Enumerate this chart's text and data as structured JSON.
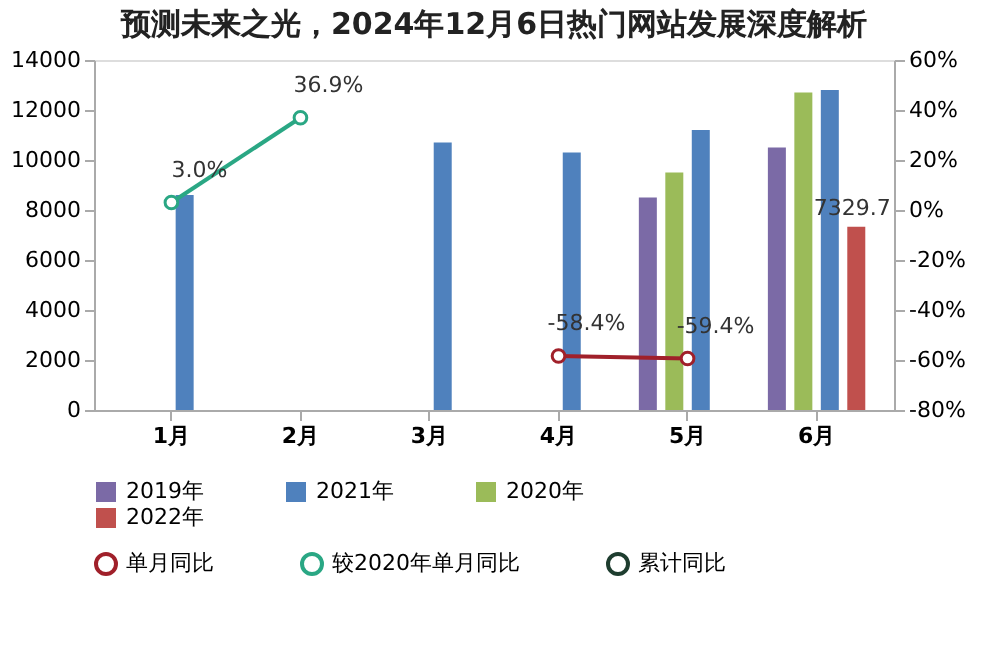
{
  "chart_data": {
    "type": "bar",
    "title": "预测未来之光，2024年12月6日热门网站发展深度解析",
    "categories": [
      "1月",
      "2月",
      "3月",
      "4月",
      "5月",
      "6月"
    ],
    "series": [
      {
        "name": "2019年",
        "color": "#7b6aa6",
        "values": [
          null,
          null,
          null,
          null,
          8500,
          10500
        ]
      },
      {
        "name": "2020年",
        "color": "#9bbb59",
        "values": [
          null,
          null,
          null,
          null,
          9500,
          12700
        ]
      },
      {
        "name": "2021年",
        "color": "#4f81bd",
        "values": [
          8600,
          null,
          10700,
          10300,
          11200,
          12800
        ]
      },
      {
        "name": "2022年",
        "color": "#c0504d",
        "values": [
          null,
          null,
          null,
          null,
          null,
          7329.7
        ],
        "value_labels": [
          null,
          null,
          null,
          null,
          null,
          "7329.7"
        ]
      },
      {
        "name": "单月同比",
        "type": "line",
        "axis": "y2",
        "color": "#a0202a",
        "values": [
          null,
          null,
          null,
          -58.4,
          -59.4,
          null
        ],
        "value_labels": [
          null,
          null,
          null,
          "-58.4%",
          "-59.4%",
          null
        ]
      },
      {
        "name": "较2020年单月同比",
        "type": "line",
        "axis": "y2",
        "color": "#2aa784",
        "values": [
          3.0,
          36.9,
          null,
          null,
          null,
          null
        ],
        "value_labels": [
          "3.0%",
          "36.9%",
          null,
          null,
          null,
          null
        ]
      },
      {
        "name": "累计同比",
        "type": "line",
        "axis": "y2",
        "color": "#1e3d2f",
        "values": [
          null,
          null,
          null,
          null,
          null,
          null
        ]
      }
    ],
    "ylim": [
      0,
      14000
    ],
    "yticks": [
      0,
      2000,
      4000,
      6000,
      8000,
      10000,
      12000,
      14000
    ],
    "y2lim": [
      -80,
      60
    ],
    "y2ticks": [
      {
        "value": -80,
        "label": "-80%"
      },
      {
        "value": -60,
        "label": "-60%"
      },
      {
        "value": -40,
        "label": "-40%"
      },
      {
        "value": -20,
        "label": "-20%"
      },
      {
        "value": 0,
        "label": "0%"
      },
      {
        "value": 20,
        "label": "20%"
      },
      {
        "value": 40,
        "label": "40%"
      },
      {
        "value": 60,
        "label": "60%"
      }
    ],
    "grid": false,
    "legend": "bottom",
    "marker": "circle",
    "line_style": "solid"
  }
}
